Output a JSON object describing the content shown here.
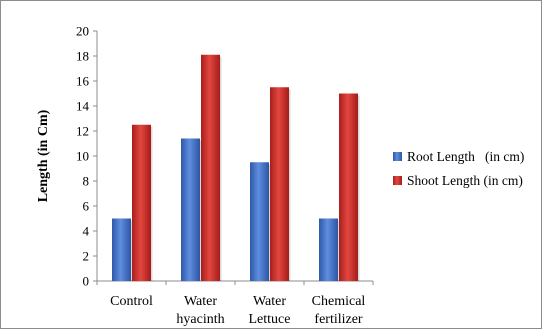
{
  "chart_data": {
    "type": "bar",
    "title": "",
    "xlabel": "",
    "ylabel": "Length (in Cm)",
    "ylim": [
      0,
      20
    ],
    "yticks": [
      0,
      2,
      4,
      6,
      8,
      10,
      12,
      14,
      16,
      18,
      20
    ],
    "categories": [
      [
        "Control"
      ],
      [
        "Water",
        "hyacinth"
      ],
      [
        "Water",
        "Lettuce"
      ],
      [
        "Chemical",
        "fertilizer"
      ]
    ],
    "series": [
      {
        "name": "Root Length   (in cm)",
        "color": "#4472c4",
        "values": [
          5.0,
          11.4,
          9.5,
          5.0
        ]
      },
      {
        "name": "Shoot Length (in cm)",
        "color": "#d9302c",
        "values": [
          12.5,
          18.1,
          15.5,
          15.0
        ]
      }
    ],
    "grid": false,
    "legend_position": "right"
  }
}
